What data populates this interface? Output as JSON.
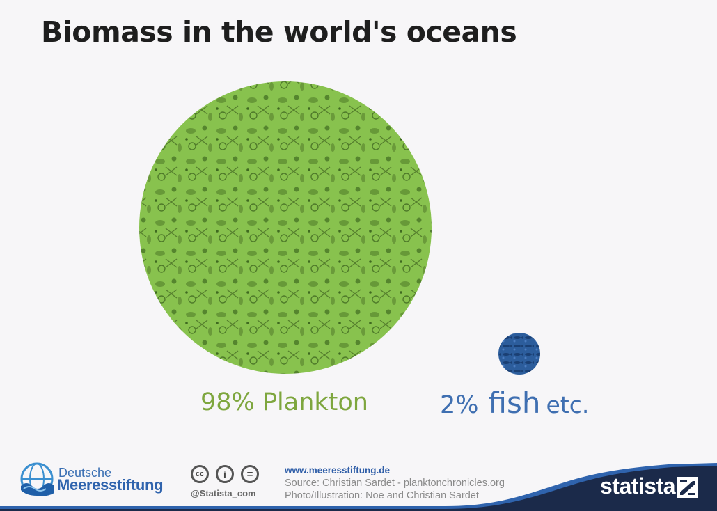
{
  "title": "Biomass in the world's oceans",
  "chart_data": {
    "type": "pie",
    "categories": [
      "Plankton",
      "fish etc."
    ],
    "values": [
      98,
      2
    ],
    "labels": [
      {
        "percent": "98%",
        "name": "Plankton"
      },
      {
        "percent": "2%",
        "name": "fish",
        "suffix": "etc."
      }
    ],
    "colors": {
      "plankton": "#88c24e",
      "fish": "#2c5d9c"
    }
  },
  "footer": {
    "logo": {
      "line1": "Deutsche",
      "line2": "Meeresstiftung",
      "icon": "globe-wave-icon"
    },
    "license_icons": [
      "cc-icon",
      "by-icon",
      "nd-icon"
    ],
    "license_glyphs": {
      "cc": "cc",
      "by": "i",
      "nd": "="
    },
    "handle": "@Statista_com",
    "url": "www.meeresstiftung.de",
    "source": "Source: Christian Sardet - planktonchronicles.org",
    "photo": "Photo/Illustration: Noe and Christian Sardet",
    "brand": "statista",
    "colors": {
      "brand_dark": "#1b2a4a",
      "brand_blue": "#2f63ad"
    }
  }
}
